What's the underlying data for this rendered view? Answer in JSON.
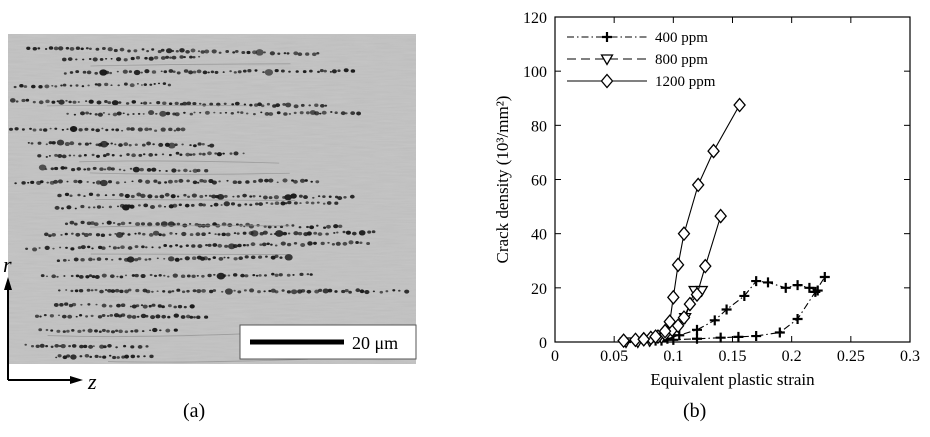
{
  "micrograph": {
    "scale_bar_label": "20 μm",
    "axis_vertical": "r",
    "axis_horizontal": "z",
    "caption": "(a)"
  },
  "figure_b": {
    "caption": "(b)"
  },
  "chart_data": {
    "type": "line",
    "title": "",
    "xlabel": "Equivalent plastic strain",
    "ylabel": "Crack density (10³/mm²)",
    "xlim": [
      0,
      0.3
    ],
    "ylim": [
      0,
      120
    ],
    "xticks": [
      0,
      0.05,
      0.1,
      0.15,
      0.2,
      0.25,
      0.3
    ],
    "xtick_labels": [
      "0",
      "0.05",
      "0.1",
      "0.15",
      "0.2",
      "0.25",
      "0.3"
    ],
    "yticks": [
      0,
      20,
      40,
      60,
      80,
      100,
      120
    ],
    "ytick_labels": [
      "0",
      "20",
      "40",
      "60",
      "80",
      "100",
      "120"
    ],
    "grid": false,
    "legend_position": "top-left",
    "series": [
      {
        "name": "400 ppm",
        "marker": "plus",
        "line": "dash-dot",
        "x": [
          0.06,
          0.07,
          0.08,
          0.09,
          0.1,
          0.12,
          0.14,
          0.155,
          0.17,
          0.19,
          0.205,
          0.22,
          0.228
        ],
        "y": [
          0,
          0,
          0.3,
          0.5,
          0.8,
          1.2,
          1.6,
          1.9,
          2.2,
          3.5,
          8.5,
          18.5,
          24
        ]
      },
      {
        "name": "400 ppm",
        "marker": "plus",
        "line": "dash-dot",
        "x": [
          0.085,
          0.095,
          0.105,
          0.12,
          0.135,
          0.145,
          0.16,
          0.17,
          0.18,
          0.195,
          0.205,
          0.215,
          0.222
        ],
        "y": [
          0.5,
          1.2,
          2.5,
          4.5,
          8,
          12,
          17,
          22.5,
          22,
          20,
          21,
          20,
          19
        ]
      },
      {
        "name": "800 ppm",
        "marker": "triangle-down",
        "line": "dash",
        "x": [
          0.06,
          0.07,
          0.08,
          0.09,
          0.1,
          0.11,
          0.118,
          0.124
        ],
        "y": [
          0,
          0,
          0.5,
          1.5,
          4.5,
          9,
          19,
          19
        ]
      },
      {
        "name": "1200 ppm",
        "marker": "diamond",
        "line": "solid",
        "x": [
          0.058,
          0.068,
          0.075,
          0.081,
          0.087,
          0.093,
          0.099,
          0.104,
          0.109,
          0.114,
          0.12,
          0.127,
          0.14
        ],
        "y": [
          0.5,
          0.8,
          1.0,
          1.5,
          2.0,
          3.0,
          4.5,
          6.0,
          9.0,
          14.0,
          17.5,
          28.0,
          46.5
        ]
      },
      {
        "name": "1200 ppm",
        "marker": "diamond",
        "line": "solid",
        "x": [
          0.075,
          0.085,
          0.093,
          0.097,
          0.1,
          0.104,
          0.109,
          0.121,
          0.134,
          0.156
        ],
        "y": [
          1.0,
          2.0,
          4.0,
          7.5,
          16.5,
          28.5,
          40.0,
          58.0,
          70.5,
          87.5
        ]
      }
    ]
  }
}
